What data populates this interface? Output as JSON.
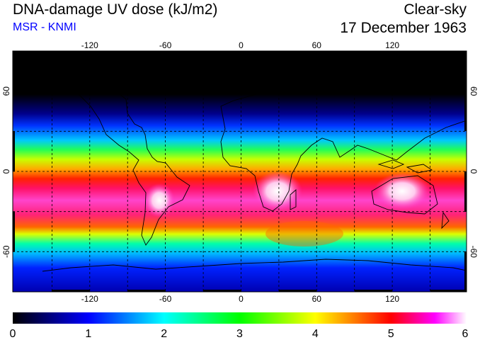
{
  "header": {
    "title": "DNA-damage UV dose (kJ/m2)",
    "credit": "MSR - KNMI",
    "condition": "Clear-sky",
    "date": "17 December 1963"
  },
  "map": {
    "projection": "equirectangular",
    "lon_range": [
      -180,
      180
    ],
    "lat_range": [
      -90,
      90
    ],
    "lon_ticks": [
      "-120",
      "-60",
      "0",
      "60",
      "120"
    ],
    "lat_ticks": [
      "60",
      "0",
      "-60"
    ],
    "gridlines": "dashed every 30 degrees"
  },
  "colorbar": {
    "min": 0,
    "max": 6,
    "tick_labels": [
      "0",
      "1",
      "2",
      "3",
      "4",
      "5",
      "6"
    ],
    "colors": [
      "#000000",
      "#0000ff",
      "#00ffff",
      "#00ff00",
      "#ffff00",
      "#ff0000",
      "#ff00ff",
      "#ffffff"
    ]
  },
  "colors": {
    "credit": "#0000ff",
    "land_outline": "#000000"
  }
}
